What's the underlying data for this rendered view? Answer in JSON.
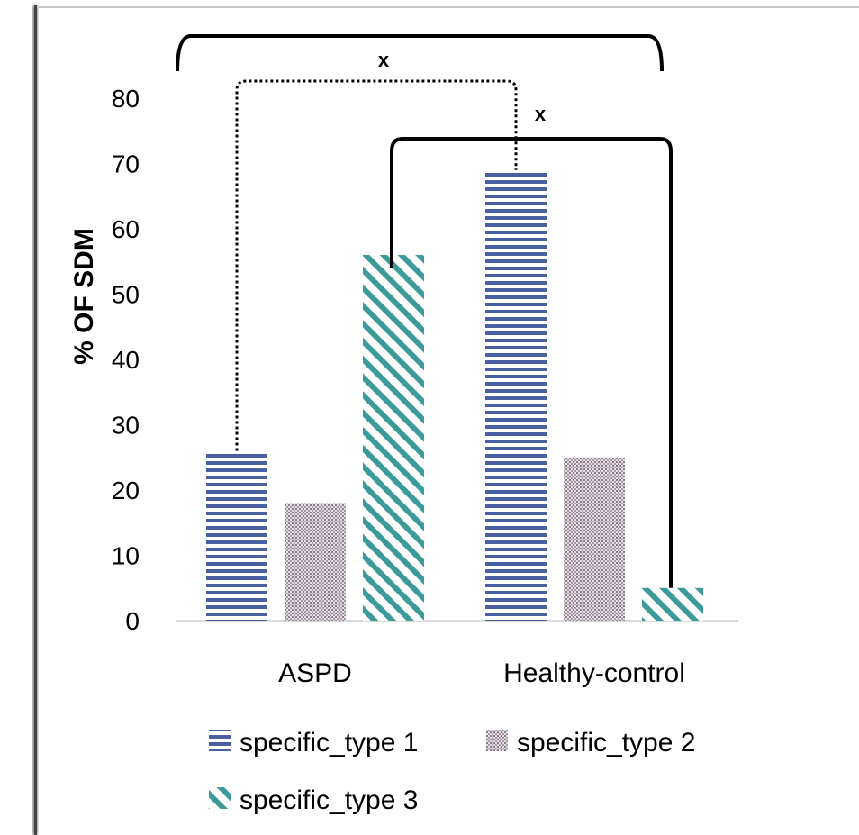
{
  "chart_data": {
    "type": "bar",
    "categories": [
      "ASPD",
      "Healthy-control"
    ],
    "series": [
      {
        "name": "specific_type 1",
        "values": [
          26,
          69
        ],
        "color": "#4a5fa0",
        "pattern": "horizontal-lines"
      },
      {
        "name": "specific_type 2",
        "values": [
          18,
          25
        ],
        "color": "#8c7d8c",
        "pattern": "dots"
      },
      {
        "name": "specific_type 3",
        "values": [
          56,
          5
        ],
        "color": "#3d9a9a",
        "pattern": "diagonal-lines"
      }
    ],
    "title": "",
    "xlabel": "",
    "ylabel": "% OF SDM",
    "ylim": [
      0,
      80
    ],
    "yticks": [
      "0",
      "10",
      "20",
      "30",
      "40",
      "50",
      "60",
      "70",
      "80"
    ],
    "grid": false,
    "legend_position": "bottom",
    "annotations": [
      {
        "label": "x",
        "style": "solid",
        "kind": "bracket-over-all"
      },
      {
        "label": "x",
        "style": "dotted",
        "from": "ASPD / specific_type 1",
        "to": "Healthy-control / specific_type 1"
      },
      {
        "label": "x",
        "style": "solid",
        "from": "ASPD / specific_type 3",
        "to": "Healthy-control / specific_type 3"
      }
    ]
  }
}
